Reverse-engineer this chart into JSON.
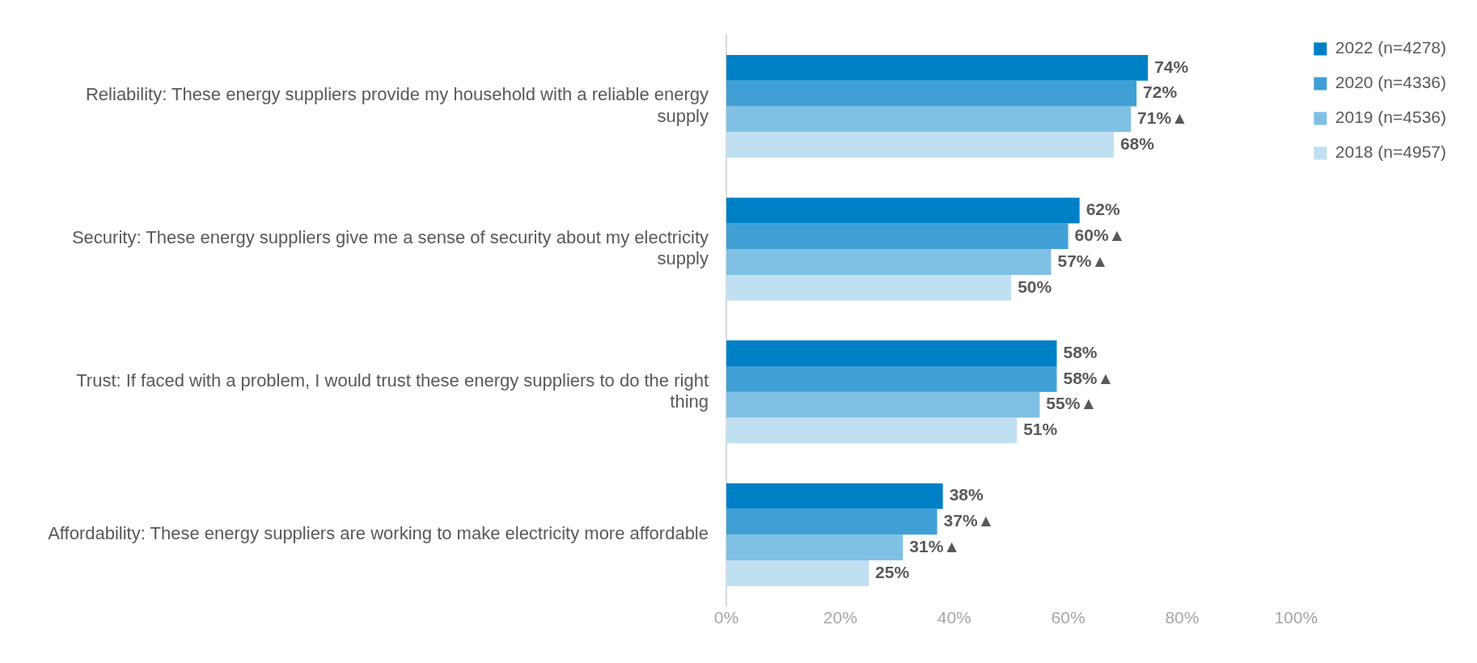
{
  "chart_data": {
    "type": "bar",
    "orientation": "horizontal",
    "categories": [
      "Reliability: These energy suppliers provide my household with a reliable energy supply",
      "Security: These energy suppliers give me a sense of security about my electricity supply",
      "Trust: If faced with a problem, I would trust these energy suppliers to do the right thing",
      "Affordability: These energy suppliers are working to make electricity more affordable"
    ],
    "series": [
      {
        "name": "2022 (n=4278)",
        "color": "#0080c6",
        "values": [
          74,
          62,
          58,
          38
        ],
        "value_labels": [
          "74%",
          "62%",
          "58%",
          "38%"
        ]
      },
      {
        "name": "2020 (n=4336)",
        "color": "#40a0d6",
        "values": [
          72,
          60,
          58,
          37
        ],
        "value_labels": [
          "72%",
          "60%▲",
          "58%▲",
          "37%▲"
        ]
      },
      {
        "name": "2019 (n=4536)",
        "color": "#80c0e4",
        "values": [
          71,
          57,
          55,
          31
        ],
        "value_labels": [
          "71%▲",
          "57%▲",
          "55%▲",
          "31%▲"
        ]
      },
      {
        "name": "2018 (n=4957)",
        "color": "#c0e0f2",
        "values": [
          68,
          50,
          51,
          25
        ],
        "value_labels": [
          "68%",
          "50%",
          "51%",
          "25%"
        ]
      }
    ],
    "xlim": [
      0,
      100
    ],
    "xticks": [
      {
        "value": 0,
        "label": "0%"
      },
      {
        "value": 20,
        "label": "20%"
      },
      {
        "value": 40,
        "label": "40%"
      },
      {
        "value": 60,
        "label": "60%"
      },
      {
        "value": 80,
        "label": "80%"
      },
      {
        "value": 100,
        "label": "100%"
      }
    ],
    "grid": false,
    "legend": "right"
  }
}
